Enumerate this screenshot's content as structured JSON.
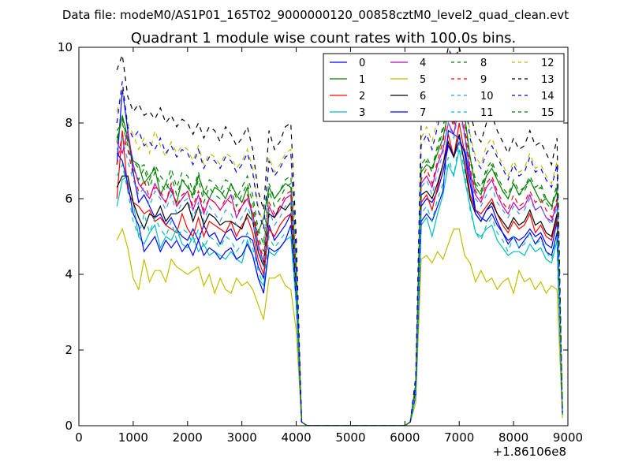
{
  "chart_data": {
    "type": "line",
    "suptitle": "Data file: modeM0/AS1P01_165T02_9000000120_00858cztM0_level2_quad_clean.evt",
    "title": "Quadrant 1 module wise count rates with 100.0s bins.",
    "xlabel": "",
    "ylabel": "",
    "x_offset_label": "+1.86106e8",
    "xlim": [
      0,
      9000
    ],
    "ylim": [
      0,
      10
    ],
    "xticks": [
      "0",
      "1000",
      "2000",
      "3000",
      "4000",
      "5000",
      "6000",
      "7000",
      "8000",
      "9000"
    ],
    "yticks": [
      "0",
      "2",
      "4",
      "6",
      "8",
      "10"
    ],
    "grid": false,
    "legend_position": "top-right",
    "x": [
      700,
      800,
      900,
      1000,
      1100,
      1200,
      1300,
      1400,
      1500,
      1600,
      1700,
      1800,
      1900,
      2000,
      2100,
      2200,
      2300,
      2400,
      2500,
      2600,
      2700,
      2800,
      2900,
      3000,
      3100,
      3200,
      3300,
      3400,
      3500,
      3600,
      3700,
      3800,
      3900,
      4000,
      4100,
      4200,
      6000,
      6100,
      6200,
      6300,
      6400,
      6500,
      6600,
      6700,
      6800,
      6900,
      7000,
      7100,
      7200,
      7300,
      7400,
      7500,
      7600,
      7700,
      7800,
      7900,
      8000,
      8100,
      8200,
      8300,
      8400,
      8500,
      8600,
      8700,
      8800,
      8900
    ],
    "series": [
      {
        "name": "0",
        "color": "#0000ff",
        "dash": false,
        "values": [
          6.9,
          8.9,
          7.8,
          6.7,
          5.9,
          6.1,
          5.8,
          5.5,
          5.6,
          5.3,
          5.5,
          5.2,
          5.0,
          4.9,
          5.2,
          4.9,
          5.3,
          5.0,
          5.1,
          4.8,
          5.1,
          5.2,
          4.9,
          5.0,
          5.0,
          4.9,
          4.2,
          3.9,
          5.3,
          4.9,
          5.1,
          5.3,
          5.6,
          3.5,
          0.1,
          0,
          0,
          0.1,
          0.9,
          5.8,
          6.0,
          5.9,
          6.2,
          6.7,
          7.4,
          7.1,
          7.5,
          7.3,
          6.6,
          5.7,
          5.5,
          5.4,
          5.6,
          5.3,
          5.1,
          4.9,
          5.0,
          4.9,
          5.0,
          5.2,
          5.0,
          5.1,
          4.8,
          4.7,
          5.4,
          0.3
        ]
      },
      {
        "name": "1",
        "color": "#008000",
        "dash": false,
        "values": [
          7.5,
          8.2,
          7.6,
          7.0,
          6.9,
          6.4,
          6.6,
          6.8,
          6.1,
          6.4,
          6.2,
          5.9,
          6.5,
          6.3,
          6.1,
          6.6,
          6.2,
          6.0,
          6.3,
          6.2,
          6.0,
          6.4,
          6.1,
          5.9,
          6.3,
          5.4,
          5.1,
          5.5,
          6.3,
          6.0,
          6.2,
          6.4,
          6.3,
          4.1,
          0.1,
          0,
          0,
          0.1,
          1.1,
          6.7,
          6.9,
          6.8,
          7.2,
          7.6,
          8.3,
          8.0,
          8.8,
          8.2,
          7.1,
          6.3,
          6.1,
          6.6,
          6.8,
          6.5,
          6.2,
          6.0,
          6.4,
          6.1,
          6.3,
          6.5,
          6.2,
          5.9,
          6.0,
          5.8,
          6.2,
          0.4
        ]
      },
      {
        "name": "2",
        "color": "#ff0000",
        "dash": false,
        "values": [
          6.0,
          7.8,
          6.2,
          5.9,
          5.8,
          5.6,
          5.7,
          5.4,
          5.5,
          5.3,
          5.2,
          5.1,
          5.6,
          5.2,
          5.0,
          5.5,
          5.0,
          5.4,
          5.3,
          5.2,
          5.1,
          5.4,
          5.0,
          5.3,
          5.5,
          5.1,
          4.4,
          4.0,
          5.2,
          5.0,
          5.3,
          5.5,
          5.6,
          3.6,
          0.1,
          0,
          0,
          0.1,
          0.9,
          5.9,
          6.1,
          5.7,
          6.3,
          6.9,
          7.7,
          7.1,
          8.0,
          7.2,
          6.1,
          5.7,
          5.6,
          5.8,
          6.0,
          5.6,
          5.3,
          5.1,
          5.4,
          5.2,
          5.3,
          5.6,
          5.1,
          5.3,
          5.0,
          4.9,
          5.5,
          0.3
        ]
      },
      {
        "name": "3",
        "color": "#00bfbf",
        "dash": false,
        "values": [
          5.8,
          6.5,
          6.6,
          5.9,
          5.0,
          4.8,
          5.1,
          5.3,
          4.7,
          5.0,
          4.9,
          5.2,
          4.8,
          4.7,
          5.0,
          4.6,
          4.8,
          4.5,
          4.6,
          4.5,
          4.4,
          4.6,
          4.4,
          4.3,
          4.9,
          4.5,
          3.9,
          3.7,
          4.6,
          4.5,
          4.7,
          4.9,
          5.0,
          3.2,
          0.1,
          0,
          0,
          0.1,
          0.8,
          5.3,
          5.5,
          5.0,
          5.6,
          6.1,
          6.9,
          6.6,
          7.3,
          6.5,
          5.8,
          5.1,
          5.0,
          5.2,
          5.3,
          4.9,
          4.7,
          4.5,
          4.6,
          4.6,
          4.5,
          4.8,
          4.6,
          4.7,
          4.4,
          4.3,
          4.9,
          0.3
        ]
      },
      {
        "name": "4",
        "color": "#bf00bf",
        "dash": false,
        "values": [
          7.5,
          7.2,
          7.8,
          6.9,
          6.4,
          6.2,
          6.0,
          6.4,
          6.1,
          5.9,
          6.3,
          5.8,
          6.0,
          6.2,
          5.7,
          6.1,
          5.6,
          6.0,
          5.9,
          5.7,
          5.9,
          6.1,
          5.5,
          5.8,
          6.0,
          5.6,
          4.8,
          4.3,
          5.8,
          5.5,
          5.7,
          6.0,
          6.1,
          3.8,
          0.1,
          0,
          0,
          0.1,
          1.0,
          6.4,
          6.6,
          6.3,
          6.9,
          7.3,
          8.0,
          7.7,
          8.5,
          7.7,
          6.7,
          6.1,
          5.9,
          6.3,
          6.5,
          6.1,
          5.8,
          5.6,
          5.9,
          5.7,
          5.8,
          6.1,
          5.7,
          5.8,
          5.5,
          5.4,
          5.9,
          0.3
        ]
      },
      {
        "name": "5",
        "color": "#bfbf00",
        "dash": false,
        "values": [
          4.9,
          5.2,
          4.7,
          3.9,
          3.6,
          4.4,
          3.8,
          4.1,
          4.1,
          3.8,
          4.4,
          4.2,
          4.1,
          4.0,
          4.1,
          4.2,
          3.7,
          4.0,
          3.5,
          3.9,
          3.6,
          3.5,
          3.9,
          3.7,
          3.8,
          3.6,
          3.2,
          2.8,
          3.9,
          3.9,
          4.0,
          3.7,
          3.6,
          2.5,
          0.1,
          0,
          0,
          0.1,
          0.6,
          4.4,
          4.5,
          4.3,
          4.6,
          4.4,
          4.8,
          5.2,
          5.2,
          4.5,
          4.3,
          3.8,
          4.1,
          3.8,
          3.9,
          3.6,
          3.8,
          3.9,
          3.5,
          4.1,
          3.8,
          3.9,
          3.6,
          3.8,
          3.5,
          3.7,
          3.6,
          0.2
        ]
      },
      {
        "name": "6",
        "color": "#000000",
        "dash": false,
        "values": [
          6.3,
          6.6,
          6.6,
          5.9,
          5.5,
          5.2,
          5.6,
          5.5,
          5.8,
          5.4,
          5.6,
          5.6,
          5.7,
          5.9,
          5.4,
          5.8,
          5.3,
          5.6,
          5.5,
          5.3,
          5.4,
          5.4,
          5.3,
          5.2,
          5.6,
          5.4,
          4.6,
          4.2,
          5.6,
          5.5,
          5.8,
          5.7,
          5.9,
          3.7,
          0.1,
          0,
          0,
          0.1,
          1.0,
          6.1,
          6.2,
          6.0,
          6.4,
          6.9,
          7.5,
          7.1,
          7.7,
          6.9,
          6.0,
          5.6,
          5.4,
          5.7,
          5.9,
          5.6,
          5.4,
          5.2,
          5.5,
          5.3,
          5.4,
          5.7,
          5.3,
          5.4,
          5.1,
          5.0,
          5.6,
          0.3
        ]
      },
      {
        "name": "7",
        "color": "#0000ff",
        "dash": false,
        "values": [
          7.2,
          7.0,
          6.4,
          5.6,
          5.3,
          4.6,
          4.8,
          5.0,
          4.6,
          4.9,
          4.7,
          4.9,
          4.6,
          4.8,
          4.5,
          4.9,
          4.5,
          4.7,
          4.6,
          4.4,
          4.6,
          4.7,
          4.4,
          4.5,
          4.8,
          4.5,
          3.9,
          3.5,
          4.7,
          4.6,
          4.7,
          4.9,
          5.3,
          3.3,
          0.1,
          0,
          0,
          0.1,
          0.8,
          5.4,
          5.6,
          5.4,
          5.8,
          6.2,
          7.8,
          7.7,
          7.6,
          7.2,
          6.4,
          5.6,
          5.4,
          5.7,
          5.8,
          5.4,
          5.1,
          4.8,
          5.0,
          4.7,
          4.9,
          5.1,
          4.8,
          5.0,
          4.6,
          4.5,
          5.1,
          0.3
        ]
      },
      {
        "name": "8",
        "color": "#008000",
        "dash": true,
        "values": [
          7.8,
          8.0,
          7.4,
          6.8,
          6.5,
          6.8,
          6.3,
          6.7,
          6.4,
          6.2,
          6.6,
          6.1,
          6.5,
          6.4,
          6.0,
          6.5,
          5.9,
          6.3,
          6.1,
          6.0,
          6.3,
          6.2,
          5.8,
          6.1,
          6.4,
          5.9,
          5.0,
          4.6,
          6.2,
          5.8,
          6.0,
          6.3,
          6.4,
          4.0,
          0.1,
          0,
          0,
          0.1,
          1.1,
          6.8,
          7.0,
          6.7,
          7.3,
          7.8,
          8.4,
          8.1,
          9.0,
          8.1,
          7.0,
          6.4,
          6.2,
          6.7,
          6.9,
          6.5,
          6.2,
          6.0,
          6.4,
          6.1,
          6.2,
          6.5,
          6.2,
          6.3,
          5.9,
          5.7,
          6.3,
          0.4
        ]
      },
      {
        "name": "9",
        "color": "#ff0000",
        "dash": true,
        "values": [
          6.9,
          7.7,
          7.3,
          6.6,
          6.2,
          6.5,
          6.0,
          6.3,
          6.2,
          5.9,
          6.4,
          5.8,
          6.1,
          6.2,
          5.8,
          6.2,
          5.7,
          6.0,
          5.9,
          5.7,
          6.0,
          5.9,
          5.6,
          5.8,
          6.1,
          5.7,
          4.9,
          4.4,
          5.9,
          5.6,
          5.8,
          6.1,
          6.2,
          3.9,
          0.1,
          0,
          0,
          0.1,
          1.0,
          6.5,
          6.8,
          6.4,
          7.0,
          7.5,
          8.3,
          7.9,
          8.7,
          7.9,
          6.8,
          6.2,
          6.0,
          6.4,
          6.6,
          6.2,
          5.9,
          5.7,
          6.1,
          5.8,
          5.9,
          6.2,
          5.9,
          6.0,
          5.7,
          5.5,
          6.0,
          0.3
        ]
      },
      {
        "name": "10",
        "color": "#3399ff",
        "dash": true,
        "values": [
          7.3,
          7.6,
          7.0,
          6.5,
          6.1,
          6.3,
          5.8,
          6.2,
          6.0,
          5.7,
          6.1,
          5.6,
          5.9,
          6.0,
          5.5,
          5.9,
          5.4,
          5.8,
          5.6,
          5.4,
          5.7,
          5.6,
          5.3,
          5.5,
          5.8,
          5.4,
          4.7,
          4.2,
          5.7,
          5.3,
          5.5,
          5.8,
          5.9,
          3.8,
          0.1,
          0,
          0,
          0.1,
          0.9,
          6.3,
          6.5,
          6.1,
          6.7,
          7.2,
          8.0,
          7.6,
          8.4,
          7.6,
          6.5,
          6.0,
          5.8,
          6.1,
          6.3,
          5.9,
          5.7,
          5.5,
          5.8,
          5.6,
          5.7,
          6.0,
          5.7,
          5.8,
          5.5,
          5.3,
          5.8,
          0.3
        ]
      },
      {
        "name": "11",
        "color": "#00bfbf",
        "dash": true,
        "values": [
          6.6,
          6.9,
          6.2,
          5.4,
          5.0,
          5.6,
          5.1,
          5.5,
          5.2,
          5.0,
          5.4,
          4.9,
          5.2,
          5.1,
          4.8,
          5.2,
          4.7,
          5.0,
          4.9,
          4.7,
          5.0,
          4.9,
          4.6,
          4.8,
          5.1,
          4.7,
          4.1,
          3.7,
          5.0,
          4.7,
          4.9,
          5.1,
          5.2,
          3.3,
          0.1,
          0,
          0,
          0.1,
          0.8,
          5.6,
          5.8,
          5.4,
          6.0,
          6.4,
          7.1,
          6.6,
          7.5,
          6.7,
          5.7,
          5.1,
          4.9,
          5.3,
          5.5,
          5.1,
          4.9,
          4.6,
          5.0,
          4.7,
          4.8,
          5.1,
          4.8,
          4.9,
          4.6,
          4.4,
          5.0,
          0.3
        ]
      },
      {
        "name": "12",
        "color": "#bfbf00",
        "dash": true,
        "values": [
          8.3,
          8.9,
          8.0,
          7.7,
          7.3,
          7.6,
          7.2,
          7.8,
          7.4,
          7.1,
          7.5,
          7.2,
          7.4,
          7.3,
          7.0,
          7.4,
          6.9,
          7.2,
          7.1,
          6.9,
          7.2,
          7.1,
          6.8,
          7.0,
          7.3,
          6.8,
          5.8,
          5.3,
          7.1,
          6.7,
          6.9,
          7.2,
          7.3,
          4.6,
          0.1,
          0,
          0,
          0.1,
          1.2,
          7.6,
          7.9,
          7.5,
          8.1,
          8.6,
          9.3,
          8.9,
          9.8,
          8.9,
          7.7,
          7.1,
          6.9,
          7.4,
          7.6,
          7.2,
          6.9,
          6.6,
          7.0,
          6.7,
          6.8,
          7.2,
          6.8,
          6.9,
          6.6,
          6.4,
          7.0,
          0.4
        ]
      },
      {
        "name": "13",
        "color": "#000000",
        "dash": true,
        "values": [
          9.4,
          9.8,
          8.7,
          8.3,
          8.5,
          8.2,
          8.3,
          8.1,
          8.4,
          8.0,
          8.2,
          7.9,
          8.1,
          8.0,
          7.7,
          8.0,
          7.6,
          7.9,
          7.8,
          7.5,
          7.9,
          7.7,
          7.4,
          7.6,
          7.9,
          7.3,
          6.2,
          5.7,
          7.8,
          7.3,
          7.5,
          7.9,
          8.0,
          5.0,
          0.1,
          0,
          0,
          0.1,
          1.3,
          8.0,
          8.4,
          8.1,
          8.7,
          9.3,
          10.0,
          9.6,
          10.0,
          9.5,
          8.3,
          7.7,
          7.5,
          8.0,
          8.2,
          7.8,
          7.5,
          7.2,
          7.6,
          7.3,
          7.4,
          7.8,
          7.4,
          7.5,
          7.2,
          6.9,
          7.6,
          0.4
        ]
      },
      {
        "name": "14",
        "color": "#0000ff",
        "dash": true,
        "values": [
          8.0,
          9.1,
          7.9,
          7.6,
          7.8,
          7.4,
          7.5,
          7.3,
          7.6,
          7.2,
          7.4,
          7.1,
          7.3,
          7.2,
          6.9,
          7.3,
          6.8,
          7.1,
          7.0,
          6.8,
          7.1,
          7.0,
          6.7,
          6.9,
          7.2,
          6.7,
          5.7,
          5.2,
          7.0,
          6.6,
          6.8,
          7.1,
          7.2,
          4.5,
          0.1,
          0,
          0,
          0.1,
          1.2,
          7.4,
          7.7,
          7.3,
          7.9,
          8.5,
          9.2,
          8.7,
          9.6,
          8.7,
          7.6,
          7.0,
          6.8,
          7.2,
          7.4,
          7.1,
          6.8,
          6.5,
          6.9,
          6.6,
          6.7,
          7.1,
          6.7,
          6.8,
          6.5,
          6.3,
          6.9,
          0.4
        ]
      },
      {
        "name": "15",
        "color": "#008000",
        "dash": true,
        "values": [
          7.6,
          8.1,
          7.5,
          7.0,
          6.8,
          6.9,
          6.5,
          6.9,
          6.6,
          6.4,
          6.8,
          6.3,
          6.7,
          6.6,
          6.2,
          6.7,
          6.1,
          6.5,
          6.4,
          6.2,
          6.5,
          6.4,
          6.0,
          6.3,
          6.6,
          6.1,
          5.2,
          4.8,
          6.4,
          6.0,
          6.2,
          6.5,
          6.6,
          4.1,
          0.1,
          0,
          0,
          0.1,
          1.1,
          6.9,
          7.1,
          6.8,
          7.4,
          7.9,
          8.5,
          8.2,
          9.1,
          8.2,
          7.1,
          6.5,
          6.3,
          6.8,
          7.0,
          6.6,
          6.3,
          6.1,
          6.5,
          6.2,
          6.3,
          6.6,
          6.3,
          6.4,
          6.0,
          5.8,
          6.4,
          0.4
        ]
      }
    ]
  }
}
